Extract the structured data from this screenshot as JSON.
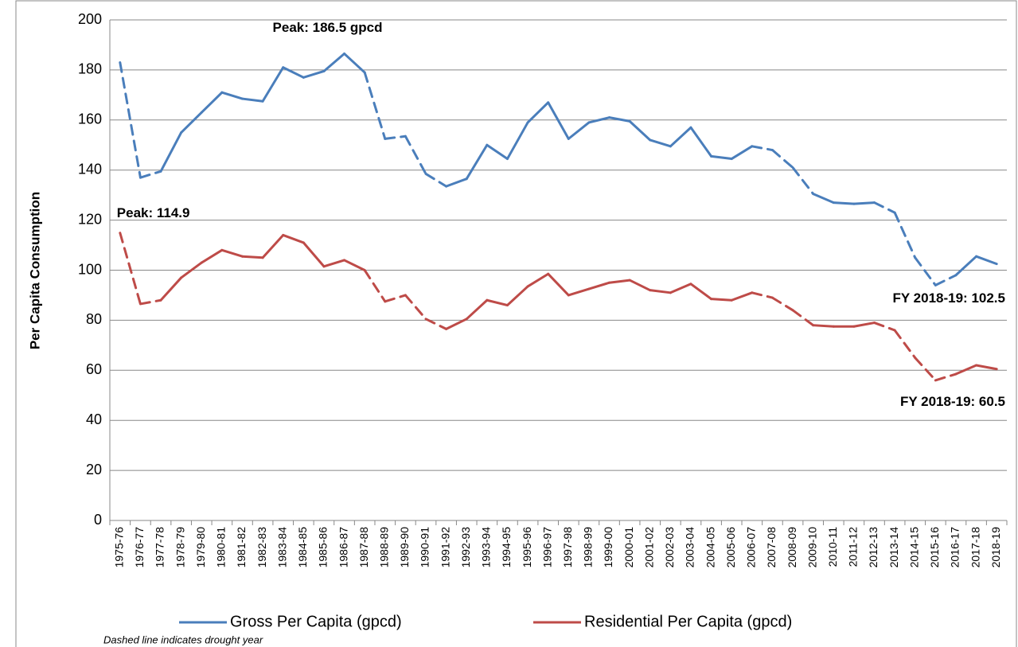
{
  "chart_data": {
    "type": "line",
    "y_label": "Per Capita Consumption",
    "note": "Dashed line indicates drought year",
    "categories": [
      "1975-76",
      "1976-77",
      "1977-78",
      "1978-79",
      "1979-80",
      "1980-81",
      "1981-82",
      "1982-83",
      "1983-84",
      "1984-85",
      "1985-86",
      "1986-87",
      "1987-88",
      "1988-89",
      "1989-90",
      "1990-91",
      "1991-92",
      "1992-93",
      "1993-94",
      "1994-95",
      "1995-96",
      "1996-97",
      "1997-98",
      "1998-99",
      "1999-00",
      "2000-01",
      "2001-02",
      "2002-03",
      "2003-04",
      "2004-05",
      "2005-06",
      "2006-07",
      "2007-08",
      "2008-09",
      "2009-10",
      "2010-11",
      "2011-12",
      "2012-13",
      "2013-14",
      "2014-15",
      "2015-16",
      "2016-17",
      "2017-18",
      "2018-19"
    ],
    "drought": [
      false,
      true,
      false,
      false,
      false,
      false,
      false,
      false,
      false,
      false,
      false,
      false,
      false,
      true,
      true,
      true,
      false,
      false,
      false,
      false,
      false,
      false,
      false,
      false,
      false,
      false,
      false,
      false,
      false,
      false,
      false,
      false,
      true,
      true,
      false,
      false,
      false,
      false,
      true,
      true,
      true,
      false,
      false,
      false
    ],
    "series": [
      {
        "name": "Gross Per Capita (gpcd)",
        "color": "#4a7ebb",
        "values": [
          183,
          137,
          139.5,
          155,
          163,
          171,
          168.5,
          167.5,
          181,
          177,
          179.5,
          186.5,
          179,
          152.5,
          153.5,
          138.5,
          133.5,
          136.5,
          150,
          144.5,
          159,
          167,
          152.5,
          159,
          161,
          159.5,
          152,
          149.5,
          157,
          145.5,
          144.5,
          149.5,
          148,
          141,
          130.5,
          127,
          126.5,
          127,
          123,
          105,
          94,
          98,
          105.5,
          102.5
        ]
      },
      {
        "name": "Residential Per Capita (gpcd)",
        "color": "#be4b48",
        "values": [
          114.9,
          86.5,
          88,
          97,
          103,
          108,
          105.5,
          105,
          114,
          111,
          101.5,
          104,
          100,
          87.5,
          90,
          80.5,
          76.5,
          80.5,
          88,
          86,
          93.5,
          98.5,
          90,
          92.5,
          95,
          96,
          92,
          91,
          94.5,
          88.5,
          88,
          91,
          89,
          84,
          78,
          77.5,
          77.5,
          79,
          76,
          65,
          56,
          58.5,
          62,
          60.5
        ]
      }
    ],
    "annotations": [
      {
        "text": "Peak: 186.5 gpcd",
        "series": 0,
        "index": 11
      },
      {
        "text": "Peak: 114.9",
        "series": 1,
        "index": 0
      },
      {
        "text": "FY 2018-19: 102.5",
        "series": 0,
        "index": 43
      },
      {
        "text": "FY 2018-19: 60.5",
        "series": 1,
        "index": 43
      }
    ],
    "ylim": [
      0,
      200
    ],
    "yticks": [
      0,
      20,
      40,
      60,
      80,
      100,
      120,
      140,
      160,
      180,
      200
    ],
    "grid": true
  }
}
